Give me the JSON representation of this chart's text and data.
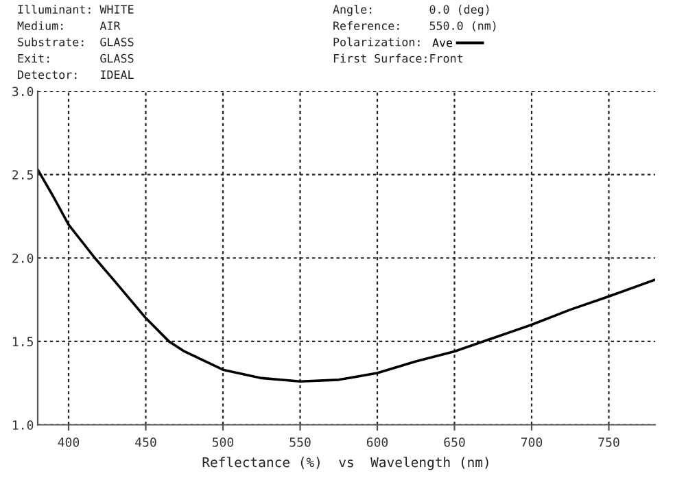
{
  "chart_data": {
    "type": "line",
    "xlabel": "Reflectance (%)  vs  Wavelength (nm)",
    "annotations": [
      "Illuminant: WHITE",
      "Medium:     AIR",
      "Substrate:  GLASS",
      "Exit:       GLASS",
      "Detector:   IDEAL",
      "Angle:        0.0 (deg)",
      "Reference:    550.0 (nm)",
      "Polarization:",
      "First Surface:Front"
    ],
    "x": [
      380,
      390,
      400,
      417,
      430,
      440,
      450,
      465,
      475,
      500,
      525,
      550,
      575,
      600,
      625,
      650,
      675,
      700,
      725,
      750,
      780
    ],
    "series": [
      {
        "name": "Ave",
        "color": "#000000",
        "values": [
          2.53,
          2.37,
          2.2,
          2.0,
          1.86,
          1.75,
          1.64,
          1.5,
          1.44,
          1.33,
          1.28,
          1.26,
          1.27,
          1.31,
          1.38,
          1.44,
          1.52,
          1.6,
          1.69,
          1.77,
          1.87
        ]
      }
    ],
    "xlim": [
      380,
      780
    ],
    "ylim": [
      1.0,
      3.0
    ],
    "xticks": [
      400,
      450,
      500,
      550,
      600,
      650,
      700,
      750
    ],
    "yticks": [
      {
        "value": 1.0,
        "label": "1.0"
      },
      {
        "value": 1.5,
        "label": "1.5"
      },
      {
        "value": 2.0,
        "label": "2.0"
      },
      {
        "value": 2.5,
        "label": "2.5"
      },
      {
        "value": 3.0,
        "label": "3.0"
      }
    ],
    "grid": true,
    "legend": "top",
    "line_style": "solid",
    "marker": "none"
  }
}
